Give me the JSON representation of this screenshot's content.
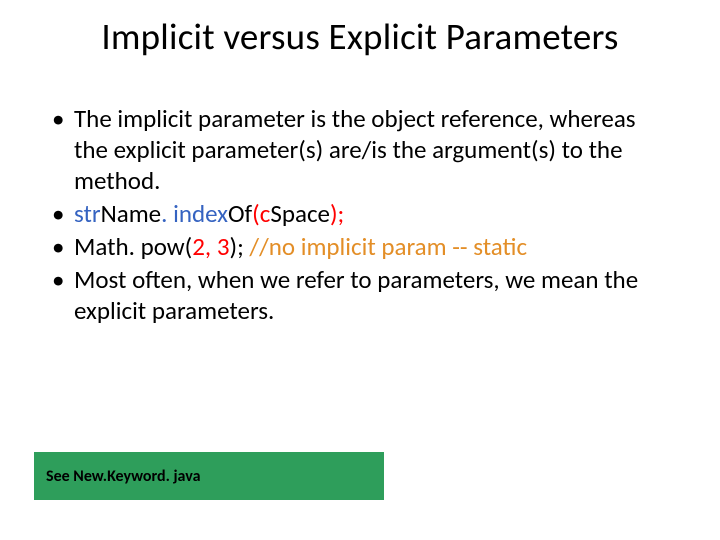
{
  "title": "Implicit versus Explicit Parameters",
  "bullets": {
    "b1": "The implicit parameter is the object reference, whereas the explicit parameter(s) are/is the argument(s) to the method.",
    "b2_pre": "str",
    "b2_name": "Name",
    "b2_mid": ". index",
    "b2_of": "Of",
    "b2_paren_open": "(",
    "b2_c": "c",
    "b2_space": "Space",
    "b2_close": ");",
    "b3_pre": "Math. pow(",
    "b3_args": "2, 3",
    "b3_close": ");  ",
    "b3_comment": "//no implicit param -- static",
    "b4": "Most often, when we refer to parameters, we mean the explicit parameters."
  },
  "footer": "See New.Keyword. java",
  "colors": {
    "blue": "#3563c1",
    "red": "#ff0000",
    "orange": "#e38e27",
    "footer_bg": "#2e9e5b",
    "text": "#000000",
    "background": "#ffffff"
  },
  "fonts": {
    "title_size": 37,
    "bullet_size": 25,
    "footer_size": 16
  }
}
